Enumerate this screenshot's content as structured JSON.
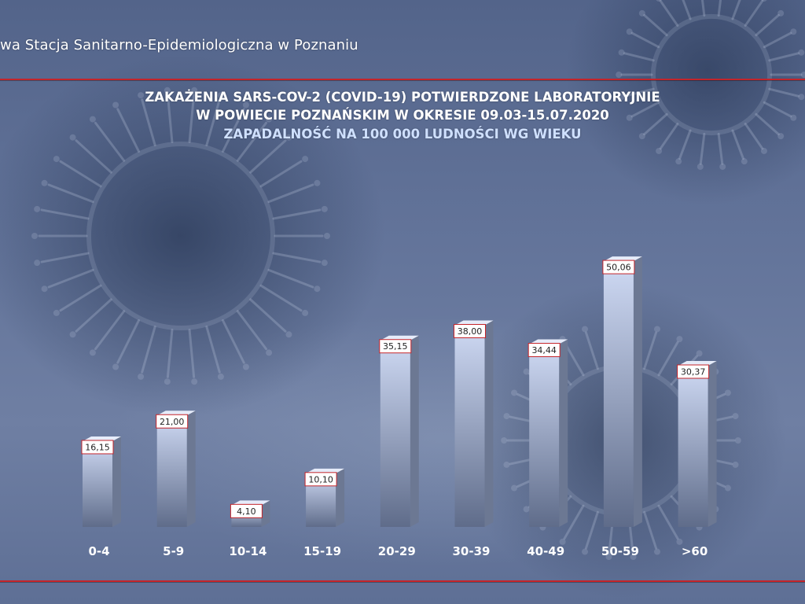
{
  "header": {
    "organization": "wa Stacja Sanitarno-Epidemiologiczna w Poznaniu"
  },
  "chart_data": {
    "type": "bar",
    "title_lines": [
      "ZAKAŻENIA SARS-COV-2 (COVID-19) POTWIERDZONE LABORATORYJNIE",
      "W POWIECIE POZNAŃSKIM W OKRESIE 09.03-15.07.2020"
    ],
    "subtitle": "ZAPADALNOŚĆ NA 100 000 LUDNOŚCI WG WIEKU",
    "categories": [
      "0-4",
      "5-9",
      "10-14",
      "15-19",
      "20-29",
      "30-39",
      "40-49",
      "50-59",
      ">60"
    ],
    "values": [
      16.15,
      21.0,
      4.1,
      10.1,
      35.15,
      38.0,
      34.44,
      50.06,
      30.37
    ],
    "value_labels": [
      "16,15",
      "21,00",
      "4,10",
      "10,10",
      "35,15",
      "38,00",
      "34,44",
      "50,06",
      "30,37"
    ],
    "ylim": [
      0,
      60
    ],
    "grid": false,
    "legend": "none",
    "xlabel": "",
    "ylabel": "",
    "colors": {
      "bar_top": "#cfdaf4",
      "bar_bottom": "#5f6c8a",
      "bar_side": "#6c7893",
      "bar_cap": "#e6ecfa",
      "label_border": "#c4242a",
      "label_bg": "#ffffff",
      "accent_rule": "#c4242a"
    }
  }
}
